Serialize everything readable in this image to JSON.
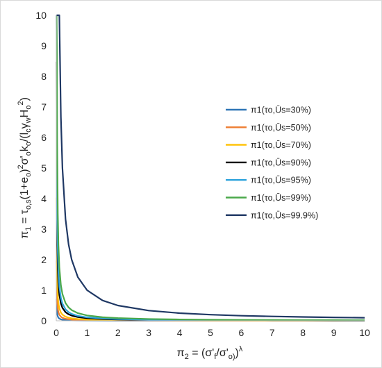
{
  "chart_data": {
    "type": "line",
    "xlabel": "π2 = (σ'f/σ'o))λ",
    "ylabel": "π1 = τo,s(1+eo)2σ'oko/(lcγwHo2)",
    "xlim": [
      0,
      10
    ],
    "ylim": [
      0,
      10
    ],
    "x_ticks": [
      "0",
      "1",
      "2",
      "3",
      "4",
      "5",
      "6",
      "7",
      "8",
      "9",
      "10"
    ],
    "y_ticks": [
      "0",
      "1",
      "2",
      "3",
      "4",
      "5",
      "6",
      "7",
      "8",
      "9",
      "10"
    ],
    "grid": false,
    "legend_position": "right",
    "x_samples": [
      0.01,
      0.02,
      0.03,
      0.05,
      0.07,
      0.1,
      0.15,
      0.2,
      0.3,
      0.4,
      0.5,
      0.7,
      1.0,
      1.5,
      2.0,
      3.0,
      4.0,
      5.0,
      6.0,
      7.0,
      8.0,
      9.0,
      10.0
    ],
    "series": [
      {
        "name": "π1(τo,Ūs=30%)",
        "color": "#2e75b6",
        "k": 0.0071
      },
      {
        "name": "π1(τo,Ūs=50%)",
        "color": "#ed7d31",
        "k": 0.0197
      },
      {
        "name": "π1(τo,Ūs=70%)",
        "color": "#ffc000",
        "k": 0.0403
      },
      {
        "name": "π1(τo,Ūs=90%)",
        "color": "#000000",
        "k": 0.0848
      },
      {
        "name": "π1(τo,Ūs=95%)",
        "color": "#2ea3dc",
        "k": 0.1129
      },
      {
        "name": "π1(τo,Ūs=99%)",
        "color": "#4aa84a",
        "k": 0.175
      },
      {
        "name": "π1(τo,Ūs=99.9%)",
        "color": "#1f3864",
        "k": 1.0
      }
    ]
  }
}
